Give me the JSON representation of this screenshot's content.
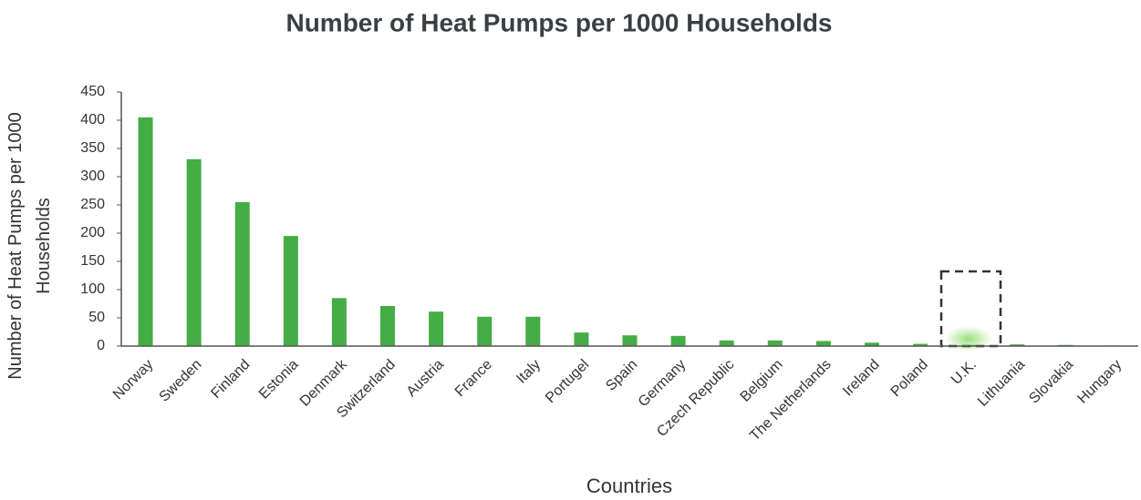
{
  "chart_data": {
    "type": "bar",
    "title": "Number of Heat Pumps per 1000 Households",
    "xlabel": "Countries",
    "ylabel": "Number of Heat Pumps per 1000 Households",
    "categories": [
      "Norway",
      "Sweden",
      "Finland",
      "Estonia",
      "Denmark",
      "Switzerland",
      "Austria",
      "France",
      "Italy",
      "Portugel",
      "Spain",
      "Germany",
      "Czech Republic",
      "Belgium",
      "The Netherlands",
      "Ireland",
      "Poland",
      "U.K.",
      "Lithuania",
      "Slovakia",
      "Hungary"
    ],
    "values": [
      405,
      331,
      255,
      195,
      85,
      71,
      61,
      52,
      52,
      24,
      19,
      18,
      10,
      10,
      9,
      6,
      4,
      2,
      3,
      2,
      1
    ],
    "color": "#45ad45",
    "ylim": [
      0,
      450
    ],
    "yticks": [
      0,
      50,
      100,
      150,
      200,
      250,
      300,
      350,
      400,
      450
    ],
    "grid": false
  }
}
